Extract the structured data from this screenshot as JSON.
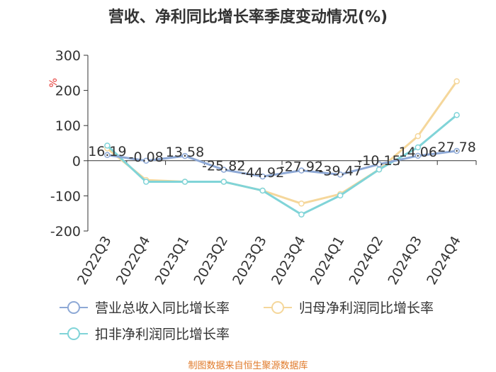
{
  "chart_data": {
    "type": "line",
    "title": "营收、净利同比增长率季度变动情况(%)",
    "ylabel": "%",
    "ylim": [
      -200,
      300
    ],
    "yticks": [
      -200,
      -100,
      0,
      100,
      200,
      300
    ],
    "grid": false,
    "legend_position": "bottom",
    "categories": [
      "2022Q3",
      "2022Q4",
      "2023Q1",
      "2023Q2",
      "2023Q3",
      "2023Q4",
      "2024Q1",
      "2024Q2",
      "2024Q3",
      "2024Q4"
    ],
    "series": [
      {
        "name": "营业总收入同比增长率",
        "color": "#8ea9d6",
        "values": [
          16.19,
          -0.08,
          13.58,
          -25.82,
          -44.92,
          -27.92,
          -39.47,
          -10.15,
          14.06,
          27.78
        ],
        "labels": [
          "16.19",
          "-0.08",
          "13.58",
          "-25.82",
          "-44.92",
          "-27.92",
          "-39.47",
          "-10.15",
          "14.06",
          "27.78"
        ]
      },
      {
        "name": "归母净利润同比增长率",
        "color": "#f5d79b",
        "values": [
          35,
          -55,
          -60,
          -60,
          -85,
          -122,
          -95,
          -25,
          70,
          226
        ]
      },
      {
        "name": "扣非净利润同比增长率",
        "color": "#80d4d8",
        "values": [
          43,
          -60,
          -60,
          -60,
          -85,
          -153,
          -99,
          -25,
          38,
          130
        ]
      }
    ]
  },
  "footer": {
    "source": "制图数据来自恒生聚源数据库"
  }
}
